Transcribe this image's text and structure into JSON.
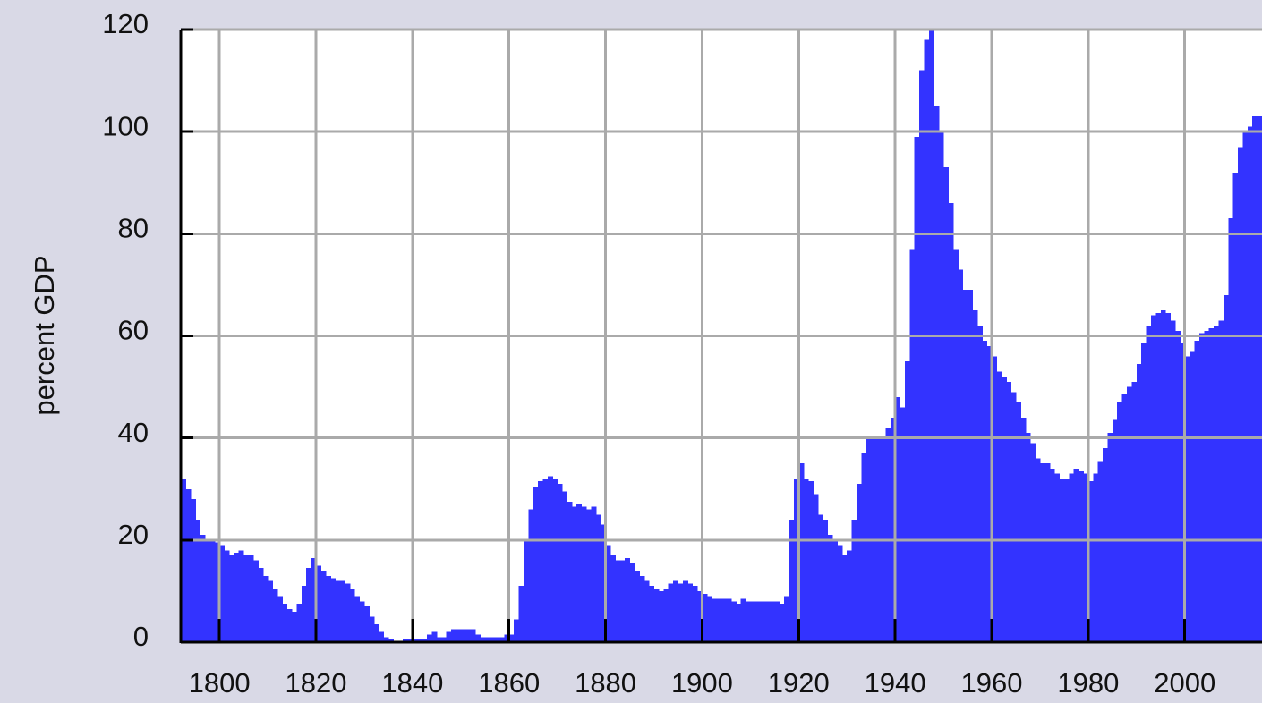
{
  "chart_data": {
    "type": "bar",
    "y_label": "percent GDP",
    "color": "#3333ff",
    "grid": true,
    "xlim": [
      1792,
      2016
    ],
    "ylim": [
      0,
      120
    ],
    "xticks": [
      1800,
      1820,
      1840,
      1860,
      1880,
      1900,
      1920,
      1940,
      1960,
      1980,
      2000
    ],
    "yticks": [
      0,
      20,
      40,
      60,
      80,
      100,
      120
    ],
    "x": [
      1792,
      1793,
      1794,
      1795,
      1796,
      1797,
      1798,
      1799,
      1800,
      1801,
      1802,
      1803,
      1804,
      1805,
      1806,
      1807,
      1808,
      1809,
      1810,
      1811,
      1812,
      1813,
      1814,
      1815,
      1816,
      1817,
      1818,
      1819,
      1820,
      1821,
      1822,
      1823,
      1824,
      1825,
      1826,
      1827,
      1828,
      1829,
      1830,
      1831,
      1832,
      1833,
      1834,
      1835,
      1836,
      1837,
      1838,
      1839,
      1840,
      1841,
      1842,
      1843,
      1844,
      1845,
      1846,
      1847,
      1848,
      1849,
      1850,
      1851,
      1852,
      1853,
      1854,
      1855,
      1856,
      1857,
      1858,
      1859,
      1860,
      1861,
      1862,
      1863,
      1864,
      1865,
      1866,
      1867,
      1868,
      1869,
      1870,
      1871,
      1872,
      1873,
      1874,
      1875,
      1876,
      1877,
      1878,
      1879,
      1880,
      1881,
      1882,
      1883,
      1884,
      1885,
      1886,
      1887,
      1888,
      1889,
      1890,
      1891,
      1892,
      1893,
      1894,
      1895,
      1896,
      1897,
      1898,
      1899,
      1900,
      1901,
      1902,
      1903,
      1904,
      1905,
      1906,
      1907,
      1908,
      1909,
      1910,
      1911,
      1912,
      1913,
      1914,
      1915,
      1916,
      1917,
      1918,
      1919,
      1920,
      1921,
      1922,
      1923,
      1924,
      1925,
      1926,
      1927,
      1928,
      1929,
      1930,
      1931,
      1932,
      1933,
      1934,
      1935,
      1936,
      1937,
      1938,
      1939,
      1940,
      1941,
      1942,
      1943,
      1944,
      1945,
      1946,
      1947,
      1948,
      1949,
      1950,
      1951,
      1952,
      1953,
      1954,
      1955,
      1956,
      1957,
      1958,
      1959,
      1960,
      1961,
      1962,
      1963,
      1964,
      1965,
      1966,
      1967,
      1968,
      1969,
      1970,
      1971,
      1972,
      1973,
      1974,
      1975,
      1976,
      1977,
      1978,
      1979,
      1980,
      1981,
      1982,
      1983,
      1984,
      1985,
      1986,
      1987,
      1988,
      1989,
      1990,
      1991,
      1992,
      1993,
      1994,
      1995,
      1996,
      1997,
      1998,
      1999,
      2000,
      2001,
      2002,
      2003,
      2004,
      2005,
      2006,
      2007,
      2008,
      2009,
      2010,
      2011,
      2012,
      2013,
      2014,
      2015
    ],
    "values": [
      32,
      30,
      28,
      24,
      21,
      20,
      20,
      19.5,
      19,
      18,
      17,
      17.5,
      18,
      17,
      17,
      16,
      14.5,
      13,
      12,
      10.5,
      9,
      7.5,
      6.5,
      6,
      7.5,
      11,
      14.5,
      16.5,
      15,
      14,
      13,
      12.5,
      12,
      12,
      11.5,
      10.5,
      9,
      8,
      7,
      5,
      3.5,
      2,
      1,
      0.5,
      0,
      0,
      0.5,
      0.5,
      0.5,
      0.5,
      0.5,
      1.5,
      2,
      1,
      1,
      2,
      2.5,
      2.5,
      2.5,
      2.5,
      2.5,
      1.5,
      1,
      1,
      1,
      1,
      1,
      1.5,
      1.5,
      4.5,
      11,
      20,
      26,
      30.5,
      31.5,
      32,
      32.5,
      32,
      31,
      29.5,
      27.5,
      26.5,
      27,
      26.5,
      26,
      26.5,
      25,
      23,
      19,
      17,
      16,
      16,
      16.5,
      15.5,
      14,
      13,
      12,
      11,
      10.5,
      10,
      10.5,
      11.5,
      12,
      11.5,
      12,
      11.5,
      11,
      10,
      9.5,
      9,
      8.5,
      8.5,
      8.5,
      8.5,
      8,
      7.5,
      8.5,
      8,
      8,
      8,
      8,
      8,
      8,
      8,
      7.5,
      9,
      24,
      32,
      35,
      32,
      31.5,
      29,
      25,
      24,
      21,
      20,
      19,
      17,
      18,
      24,
      31,
      37,
      40,
      40,
      40,
      40,
      42,
      44,
      48,
      46,
      55,
      77,
      99,
      112,
      118,
      120,
      105,
      100,
      93,
      86,
      77,
      73,
      69,
      69,
      65,
      62,
      59,
      58,
      56,
      53,
      52,
      51,
      49,
      47,
      44,
      41,
      39,
      36,
      35,
      35,
      34,
      33,
      32,
      32,
      33,
      34,
      33.5,
      33,
      31.5,
      33,
      35.5,
      38,
      41,
      43.5,
      47,
      48.5,
      50,
      51,
      54.5,
      58.5,
      62,
      64,
      64.5,
      65,
      64.5,
      63,
      61,
      58.5,
      56,
      57,
      59,
      60.5,
      61,
      61.5,
      62,
      63,
      68,
      83,
      92,
      97,
      100,
      101,
      103,
      103
    ]
  }
}
